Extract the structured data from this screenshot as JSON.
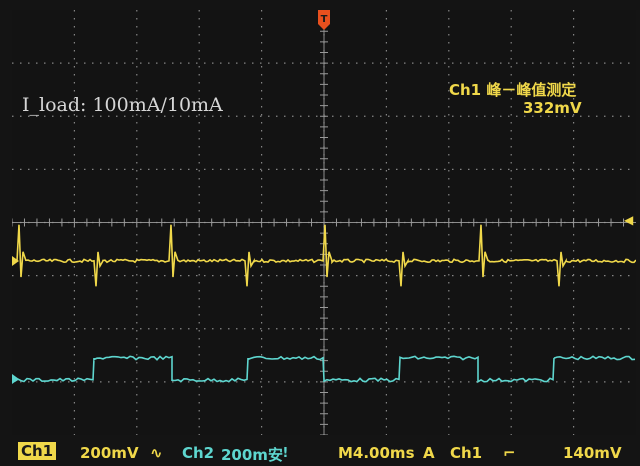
{
  "annotation": "I_load: 100mA/10mA",
  "measurement": {
    "title": "Ch1 峰－峰值测定",
    "value": "332mV"
  },
  "status_bar": {
    "ch1_label": "Ch1",
    "ch1_scale": "200mV",
    "ch1_coupling_symbol": "∿",
    "ch2_label": "Ch2",
    "ch2_scale": "200m安",
    "ch2_symbol": "ǃ",
    "timebase": "M4.00ms",
    "trigger_mode": "A",
    "trigger_source": "Ch1",
    "trigger_slope_symbol": "⌐",
    "trigger_level": "140mV"
  },
  "markers": {
    "trigger_position_symbol": "T",
    "trigger_level_symbol": "◀"
  },
  "colors": {
    "ch1": "#f0d84a",
    "ch2": "#5ed6cf",
    "grid": "#9a9a9a",
    "trigger_marker": "#e8501e"
  },
  "chart_data": {
    "type": "line",
    "x_unit": "ms",
    "time_per_div_ms": 4.0,
    "series": [
      {
        "name": "Ch1",
        "description_values": "baseline ripple with spikes at load steps",
        "baseline_div": 0.05,
        "spike_times_div": [
          0.05,
          1.05,
          2.05,
          3.05,
          4.05,
          5.05,
          6.05,
          7.05,
          8.05,
          9.05
        ],
        "spike_polarity": [
          1,
          -1,
          1,
          -1,
          1,
          -1,
          1,
          -1,
          1,
          -1
        ],
        "spike_amplitude_div": 0.8
      },
      {
        "name": "Ch2",
        "high_level_div": -2.2,
        "low_level_div": -2.8,
        "edges_div": [
          1.05,
          2.05,
          3.05,
          4.05,
          5.05,
          6.05,
          7.05,
          8.05,
          9.05
        ]
      }
    ]
  }
}
